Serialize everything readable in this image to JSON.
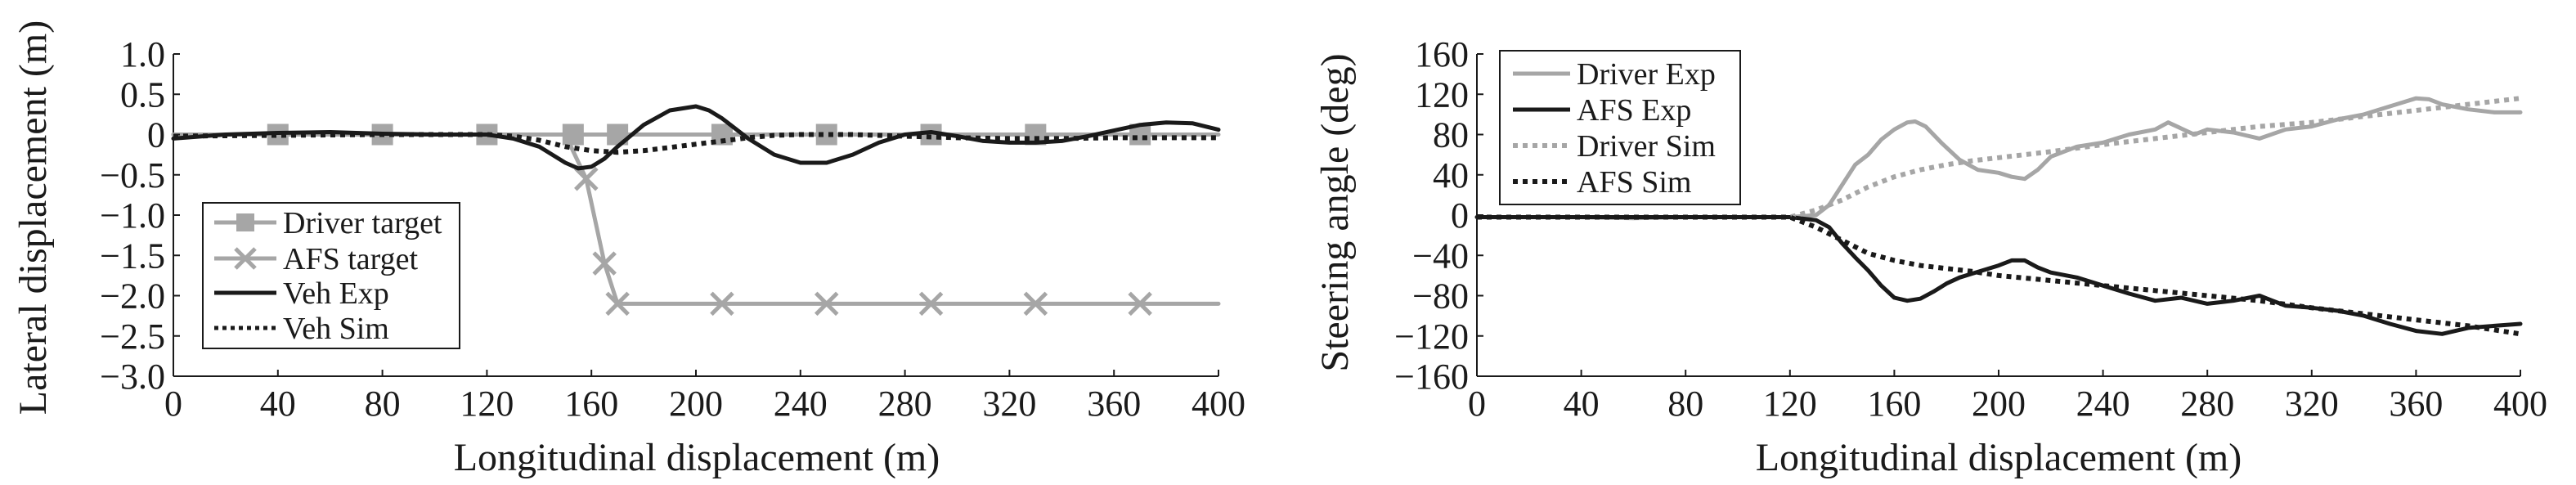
{
  "chart_data": [
    {
      "type": "line",
      "xlabel": "Longitudinal displacement (m)",
      "ylabel": "Lateral displacement (m)",
      "xlim": [
        0,
        400
      ],
      "ylim": [
        -3.0,
        1.0
      ],
      "xticks": [
        "0",
        "40",
        "80",
        "120",
        "160",
        "200",
        "240",
        "280",
        "320",
        "360",
        "400"
      ],
      "yticks": [
        "1.0",
        "0.5",
        "0",
        "−0.5",
        "−1.0",
        "−1.5",
        "−2.0",
        "−2.5",
        "−3.0"
      ],
      "ytick_values": [
        1.0,
        0.5,
        0,
        -0.5,
        -1.0,
        -1.5,
        -2.0,
        -2.5,
        -3.0
      ],
      "xtick_values": [
        0,
        40,
        80,
        120,
        160,
        200,
        240,
        280,
        320,
        360,
        400
      ],
      "grid": false,
      "legend_position": "bottom-left",
      "series": [
        {
          "name": "Driver target",
          "color": "#a6a6a6",
          "style": "solid",
          "marker": "square",
          "x": [
            0,
            40,
            80,
            120,
            153,
            170,
            210,
            250,
            290,
            330,
            370,
            400
          ],
          "y": [
            0,
            0,
            0,
            0,
            0,
            0,
            0,
            0,
            0,
            0,
            0,
            0
          ]
        },
        {
          "name": "AFS target",
          "color": "#a6a6a6",
          "style": "solid",
          "marker": "x",
          "x": [
            0,
            120,
            150,
            158,
            165,
            170,
            210,
            250,
            290,
            330,
            370,
            400
          ],
          "y": [
            0,
            0,
            0,
            -0.55,
            -1.6,
            -2.1,
            -2.1,
            -2.1,
            -2.1,
            -2.1,
            -2.1,
            -2.1
          ],
          "marker_x": [
            158,
            165,
            170,
            210,
            250,
            290,
            330,
            370
          ],
          "marker_y": [
            -0.55,
            -1.6,
            -2.1,
            -2.1,
            -2.1,
            -2.1,
            -2.1,
            -2.1
          ]
        },
        {
          "name": "Veh Exp",
          "color": "#1a1a1a",
          "style": "solid",
          "x": [
            0,
            20,
            40,
            60,
            80,
            100,
            120,
            130,
            140,
            150,
            155,
            160,
            165,
            170,
            180,
            190,
            200,
            205,
            210,
            220,
            230,
            240,
            250,
            260,
            270,
            280,
            290,
            300,
            310,
            320,
            330,
            340,
            350,
            360,
            370,
            380,
            390,
            400
          ],
          "y": [
            -0.05,
            0,
            0.02,
            0.03,
            0.01,
            0,
            0,
            -0.05,
            -0.15,
            -0.35,
            -0.42,
            -0.4,
            -0.3,
            -0.15,
            0.12,
            0.3,
            0.35,
            0.3,
            0.2,
            -0.05,
            -0.25,
            -0.35,
            -0.35,
            -0.25,
            -0.1,
            0,
            0.03,
            -0.02,
            -0.08,
            -0.1,
            -0.1,
            -0.08,
            -0.02,
            0.05,
            0.12,
            0.15,
            0.14,
            0.06
          ]
        },
        {
          "name": "Veh Sim",
          "color": "#1a1a1a",
          "style": "dotted",
          "x": [
            0,
            40,
            80,
            120,
            130,
            140,
            150,
            160,
            170,
            180,
            190,
            200,
            210,
            220,
            230,
            240,
            260,
            280,
            300,
            320,
            340,
            360,
            380,
            400
          ],
          "y": [
            -0.02,
            -0.01,
            0,
            0,
            -0.02,
            -0.07,
            -0.15,
            -0.2,
            -0.22,
            -0.2,
            -0.16,
            -0.12,
            -0.08,
            -0.04,
            -0.01,
            0,
            0,
            -0.02,
            -0.04,
            -0.05,
            -0.05,
            -0.04,
            -0.04,
            -0.04
          ]
        }
      ]
    },
    {
      "type": "line",
      "xlabel": "Longitudinal displacement (m)",
      "ylabel": "Steering angle (deg)",
      "xlim": [
        0,
        400
      ],
      "ylim": [
        -160,
        160
      ],
      "xticks": [
        "0",
        "40",
        "80",
        "120",
        "160",
        "200",
        "240",
        "280",
        "320",
        "360",
        "400"
      ],
      "yticks": [
        "160",
        "120",
        "80",
        "40",
        "0",
        "−40",
        "−80",
        "−120",
        "−160"
      ],
      "ytick_values": [
        160,
        120,
        80,
        40,
        0,
        -40,
        -80,
        -120,
        -160
      ],
      "xtick_values": [
        0,
        40,
        80,
        120,
        160,
        200,
        240,
        280,
        320,
        360,
        400
      ],
      "grid": false,
      "legend_position": "top-left",
      "series": [
        {
          "name": "Driver Exp",
          "color": "#a6a6a6",
          "style": "solid",
          "x": [
            0,
            40,
            60,
            80,
            120,
            130,
            135,
            140,
            145,
            150,
            155,
            160,
            165,
            168,
            172,
            178,
            185,
            192,
            200,
            205,
            210,
            215,
            220,
            230,
            240,
            250,
            260,
            265,
            270,
            275,
            280,
            290,
            300,
            310,
            320,
            330,
            340,
            350,
            355,
            360,
            365,
            370,
            380,
            390,
            400
          ],
          "y": [
            -2,
            -2,
            -3,
            -2,
            -2,
            0,
            10,
            30,
            50,
            60,
            75,
            85,
            92,
            93,
            88,
            72,
            55,
            45,
            42,
            38,
            36,
            45,
            58,
            68,
            72,
            80,
            85,
            92,
            86,
            80,
            85,
            82,
            76,
            85,
            88,
            95,
            100,
            108,
            112,
            116,
            115,
            110,
            105,
            102,
            102
          ]
        },
        {
          "name": "AFS Exp",
          "color": "#1a1a1a",
          "style": "solid",
          "x": [
            0,
            40,
            80,
            120,
            130,
            135,
            140,
            145,
            150,
            155,
            160,
            165,
            170,
            175,
            180,
            185,
            190,
            200,
            205,
            210,
            215,
            220,
            230,
            240,
            250,
            260,
            270,
            280,
            290,
            300,
            305,
            310,
            320,
            330,
            340,
            350,
            360,
            370,
            380,
            390,
            400
          ],
          "y": [
            -2,
            -2,
            -2,
            -2,
            -5,
            -12,
            -28,
            -42,
            -55,
            -70,
            -82,
            -85,
            -83,
            -76,
            -68,
            -62,
            -58,
            -50,
            -45,
            -45,
            -52,
            -57,
            -62,
            -70,
            -78,
            -85,
            -82,
            -88,
            -85,
            -80,
            -85,
            -90,
            -92,
            -95,
            -100,
            -108,
            -115,
            -118,
            -112,
            -110,
            -108
          ]
        },
        {
          "name": "Driver Sim",
          "color": "#a6a6a6",
          "style": "dotted",
          "x": [
            0,
            40,
            80,
            120,
            130,
            140,
            150,
            160,
            170,
            180,
            190,
            200,
            220,
            240,
            260,
            280,
            300,
            320,
            340,
            360,
            380,
            400
          ],
          "y": [
            -2,
            -2,
            -2,
            -2,
            5,
            15,
            28,
            38,
            45,
            50,
            54,
            57,
            63,
            70,
            76,
            82,
            88,
            92,
            98,
            104,
            110,
            116
          ]
        },
        {
          "name": "AFS Sim",
          "color": "#1a1a1a",
          "style": "dotted",
          "x": [
            0,
            40,
            80,
            120,
            130,
            140,
            150,
            160,
            170,
            180,
            190,
            200,
            220,
            240,
            260,
            280,
            300,
            320,
            340,
            360,
            380,
            400
          ],
          "y": [
            -2,
            -2,
            -2,
            -2,
            -12,
            -25,
            -38,
            -45,
            -50,
            -53,
            -56,
            -60,
            -65,
            -70,
            -75,
            -80,
            -85,
            -92,
            -98,
            -104,
            -110,
            -118
          ]
        }
      ]
    }
  ]
}
